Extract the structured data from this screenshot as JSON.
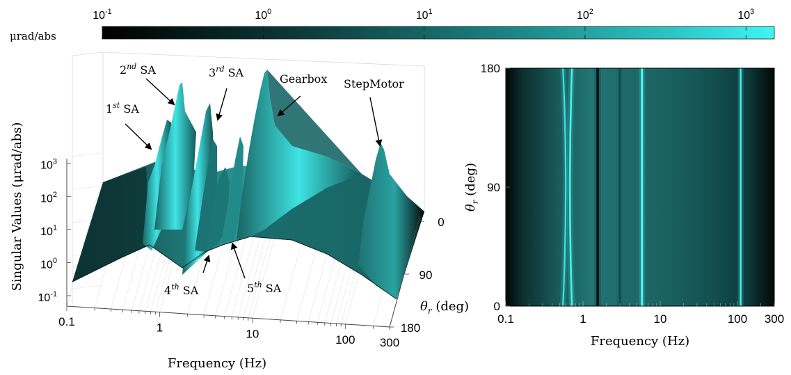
{
  "figure": {
    "colorbar": {
      "unit_label": "μrad/abs",
      "tick_labels": [
        {
          "base": "10",
          "exp": "-1"
        },
        {
          "base": "10",
          "exp": "0"
        },
        {
          "base": "10",
          "exp": "1"
        },
        {
          "base": "10",
          "exp": "2"
        },
        {
          "base": "10",
          "exp": "3"
        }
      ],
      "range": [
        0.1,
        1500
      ],
      "scale": "log",
      "colors": {
        "low": "#000000",
        "mid": "#1f8a8a",
        "high": "#40f2f2"
      }
    }
  },
  "chart_data": [
    {
      "type": "surface",
      "xlabel": "Frequency (Hz)",
      "ylabel": "Singular Values (μrad/abs)",
      "zlabel": "θr (deg)",
      "x_ticks": [
        "0.1",
        "1",
        "10",
        "100",
        "300"
      ],
      "y_ticks": [
        {
          "base": "10",
          "exp": "-1"
        },
        {
          "base": "10",
          "exp": "0"
        },
        {
          "base": "10",
          "exp": "1"
        },
        {
          "base": "10",
          "exp": "2"
        },
        {
          "base": "10",
          "exp": "3"
        }
      ],
      "theta_ticks": [
        "0",
        "90",
        "180"
      ],
      "xlim": [
        0.1,
        300
      ],
      "ylim": [
        0.1,
        3000
      ],
      "thetalim": [
        0,
        180
      ],
      "x_scale": "log",
      "y_scale": "log",
      "peak_frequencies_hz": [
        0.55,
        0.72,
        1.55,
        3.0,
        5.8,
        110
      ],
      "annotations": [
        {
          "base": "1",
          "sup": "st",
          "text": " SA"
        },
        {
          "base": "2",
          "sup": "nd",
          "text": " SA"
        },
        {
          "base": "3",
          "sup": "rd",
          "text": " SA"
        },
        {
          "base": "4",
          "sup": "th",
          "text": " SA"
        },
        {
          "base": "5",
          "sup": "th",
          "text": " SA"
        },
        {
          "base": "",
          "sup": "",
          "text": "Gearbox"
        },
        {
          "base": "",
          "sup": "",
          "text": "StepMotor"
        }
      ]
    },
    {
      "type": "heatmap",
      "xlabel": "Frequency (Hz)",
      "ylabel": "θr (deg)",
      "x_ticks": [
        "0.1",
        "1",
        "10",
        "100",
        "300"
      ],
      "y_ticks": [
        "0",
        "90",
        "180"
      ],
      "xlim": [
        0.1,
        300
      ],
      "ylim": [
        0,
        180
      ],
      "x_scale": "log",
      "resonance_lines_hz": [
        0.55,
        0.72,
        1.55,
        3.0,
        5.8,
        110
      ]
    }
  ]
}
